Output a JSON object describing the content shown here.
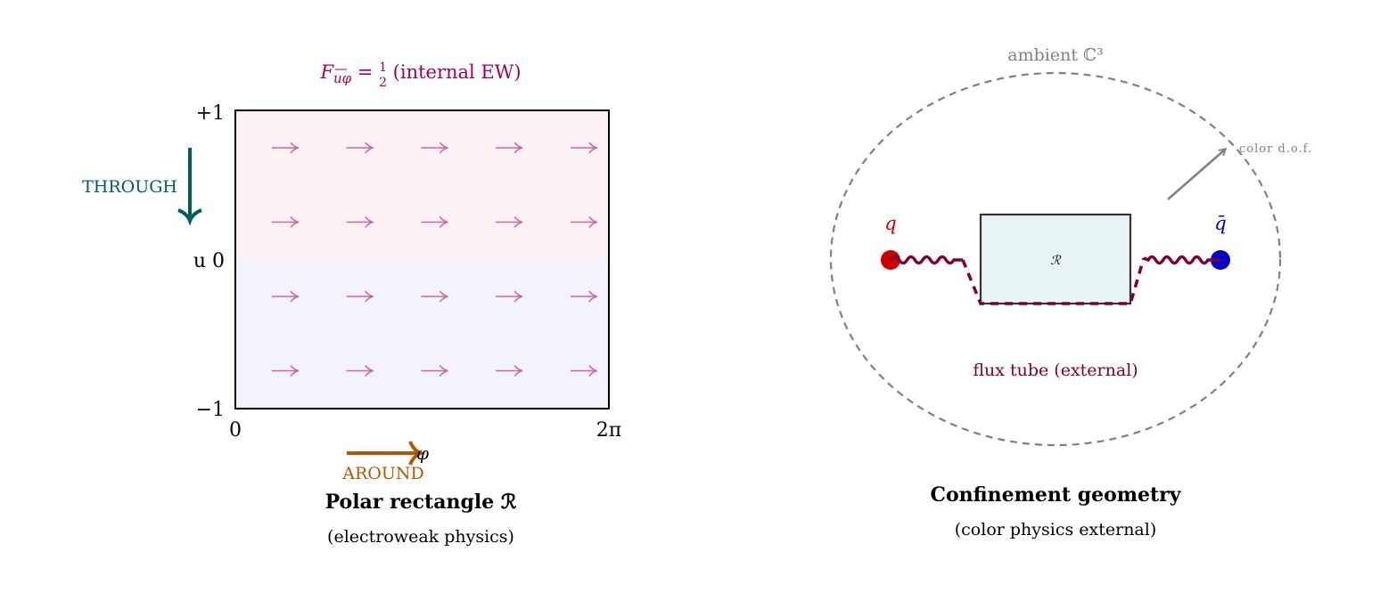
{
  "left_panel": {
    "field_label": {
      "symbol": "F",
      "subscript": "uφ",
      "equals": " = ",
      "num": "1",
      "den": "2",
      "note": " (internal EW)"
    },
    "y_ticks": {
      "top": "+1",
      "mid": "u 0",
      "bottom": "−1"
    },
    "x_ticks": {
      "left": "0",
      "right": "2π"
    },
    "through_label": "THROUGH",
    "around_label": "AROUND",
    "phi_label": "φ",
    "title": "Polar rectangle ℛ",
    "subtitle": "(electroweak physics)",
    "arrow_grid": {
      "rows": 4,
      "cols": 5
    }
  },
  "right_panel": {
    "ambient_label": "ambient ℂ³",
    "color_dof_label": "color d.o.f.",
    "quark_label": "q",
    "antiquark_label": "q̄",
    "region_label": "ℛ",
    "flux_label": "flux tube (external)",
    "title": "Confinement geometry",
    "subtitle": "(color physics external)"
  },
  "colors": {
    "field": "#a0005a",
    "field_arrows": "#cc66aa",
    "upper_fill": "#fdf2f3",
    "lower_fill": "#f2f3fc",
    "through": "#005f5a",
    "around": "#b05a00",
    "quark": "#cc0000",
    "antiquark": "#0000cc",
    "flux": "#800030",
    "gray": "#808080",
    "region_fill": "#e8f4f4"
  }
}
